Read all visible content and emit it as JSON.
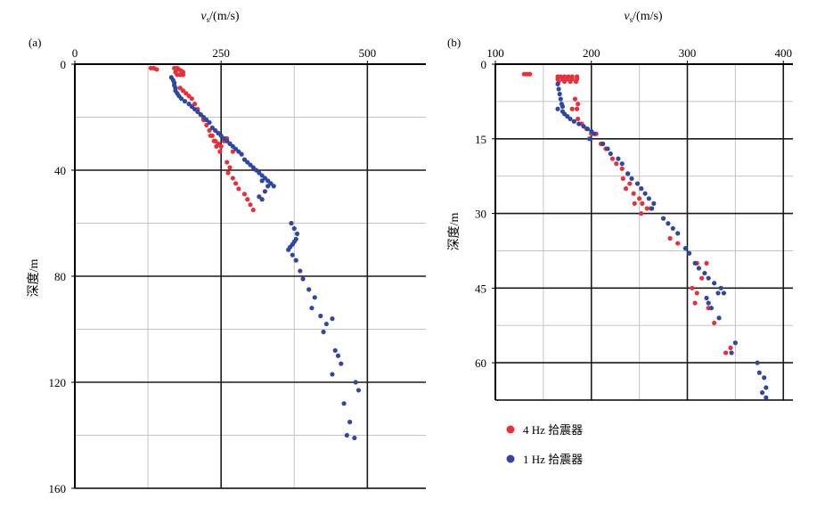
{
  "legend": {
    "red_label": "4 Hz 拾震器",
    "blue_label": "1 Hz 拾震器"
  },
  "colors": {
    "red": "#e8303a",
    "blue": "#2f47a3",
    "major_grid": "#1a1a1a",
    "minor_grid": "#c4c4c4"
  },
  "chart_data": [
    {
      "type": "scatter",
      "panel_label": "(a)",
      "xlabel_var": "v",
      "xlabel_sub": "s",
      "xlabel_unit": "/(m/s)",
      "ylabel": "深度/m",
      "xlim": [
        0,
        600
      ],
      "ylim": [
        0,
        160
      ],
      "y_inverted": true,
      "x_axis_position": "top",
      "xticks": [
        0,
        250,
        500
      ],
      "yticks": [
        0,
        40,
        80,
        120,
        160
      ],
      "major_x": [
        250,
        500
      ],
      "minor_x": [
        125,
        375
      ],
      "major_y": [
        40,
        80,
        120
      ],
      "minor_y": [
        20,
        60,
        100,
        140
      ],
      "series": [
        {
          "name": "4 Hz 拾震器",
          "color": "red",
          "points": [
            [
              130,
              1.5
            ],
            [
              135,
              1.5
            ],
            [
              140,
              2
            ],
            [
              170,
              1.5
            ],
            [
              175,
              1.5
            ],
            [
              178,
              2
            ],
            [
              182,
              2.5
            ],
            [
              185,
              3
            ],
            [
              172,
              3
            ],
            [
              175,
              4
            ],
            [
              180,
              4
            ],
            [
              185,
              4
            ],
            [
              180,
              9
            ],
            [
              185,
              10
            ],
            [
              190,
              11
            ],
            [
              195,
              12
            ],
            [
              200,
              13
            ],
            [
              205,
              15
            ],
            [
              210,
              17
            ],
            [
              215,
              19
            ],
            [
              220,
              21
            ],
            [
              225,
              23
            ],
            [
              230,
              25
            ],
            [
              235,
              27
            ],
            [
              240,
              29
            ],
            [
              245,
              30
            ],
            [
              250,
              31
            ],
            [
              255,
              29
            ],
            [
              260,
              28
            ],
            [
              265,
              30
            ],
            [
              270,
              33
            ],
            [
              232,
              27
            ],
            [
              238,
              29
            ],
            [
              242,
              31
            ],
            [
              248,
              33
            ],
            [
              260,
              37
            ],
            [
              265,
              39
            ],
            [
              262,
              41
            ],
            [
              270,
              43
            ],
            [
              275,
              45
            ],
            [
              280,
              47
            ],
            [
              290,
              49
            ],
            [
              295,
              51
            ],
            [
              300,
              53
            ],
            [
              305,
              55
            ]
          ]
        },
        {
          "name": "1 Hz 拾震器",
          "color": "blue",
          "points": [
            [
              165,
              5
            ],
            [
              168,
              6
            ],
            [
              170,
              7
            ],
            [
              170,
              8
            ],
            [
              172,
              9
            ],
            [
              172,
              10
            ],
            [
              175,
              11
            ],
            [
              178,
              12
            ],
            [
              182,
              13
            ],
            [
              188,
              14
            ],
            [
              195,
              15
            ],
            [
              200,
              16
            ],
            [
              205,
              17
            ],
            [
              210,
              18
            ],
            [
              215,
              19
            ],
            [
              220,
              20
            ],
            [
              225,
              21
            ],
            [
              230,
              22
            ],
            [
              235,
              24
            ],
            [
              240,
              25
            ],
            [
              245,
              26
            ],
            [
              250,
              27
            ],
            [
              255,
              28
            ],
            [
              260,
              29
            ],
            [
              265,
              30
            ],
            [
              270,
              31
            ],
            [
              275,
              32
            ],
            [
              280,
              33
            ],
            [
              285,
              34
            ],
            [
              290,
              36
            ],
            [
              295,
              37
            ],
            [
              300,
              38
            ],
            [
              305,
              39
            ],
            [
              310,
              40
            ],
            [
              315,
              41
            ],
            [
              320,
              42
            ],
            [
              325,
              43
            ],
            [
              330,
              44
            ],
            [
              335,
              45
            ],
            [
              340,
              46
            ],
            [
              320,
              44
            ],
            [
              330,
              46
            ],
            [
              325,
              48
            ],
            [
              315,
              50
            ],
            [
              320,
              51
            ],
            [
              370,
              60
            ],
            [
              375,
              62
            ],
            [
              380,
              64
            ],
            [
              378,
              66
            ],
            [
              375,
              67
            ],
            [
              372,
              68
            ],
            [
              368,
              69
            ],
            [
              365,
              70
            ],
            [
              372,
              72
            ],
            [
              378,
              74
            ],
            [
              385,
              78
            ],
            [
              390,
              81
            ],
            [
              400,
              85
            ],
            [
              410,
              88
            ],
            [
              405,
              92
            ],
            [
              420,
              95
            ],
            [
              430,
              98
            ],
            [
              440,
              96
            ],
            [
              425,
              101
            ],
            [
              445,
              108
            ],
            [
              450,
              110
            ],
            [
              455,
              113
            ],
            [
              440,
              117
            ],
            [
              480,
              120
            ],
            [
              485,
              123
            ],
            [
              460,
              128
            ],
            [
              470,
              135
            ],
            [
              465,
              140
            ],
            [
              478,
              141
            ]
          ]
        }
      ]
    },
    {
      "type": "scatter",
      "panel_label": "(b)",
      "xlabel_var": "v",
      "xlabel_sub": "s",
      "xlabel_unit": "/(m/s)",
      "ylabel": "深度/m",
      "xlim": [
        100,
        410
      ],
      "ylim": [
        0,
        67.5
      ],
      "y_inverted": true,
      "x_axis_position": "top",
      "xticks": [
        100,
        200,
        300,
        400
      ],
      "yticks": [
        0,
        15,
        30,
        45,
        60
      ],
      "major_x": [
        200,
        300,
        400
      ],
      "minor_x": [
        150,
        250,
        350
      ],
      "major_y": [
        15,
        30,
        45,
        60
      ],
      "minor_y": [
        7.5,
        22.5,
        37.5,
        52.5
      ],
      "series": [
        {
          "name": "4 Hz 拾震器",
          "color": "red",
          "points": [
            [
              130,
              2
            ],
            [
              133,
              2
            ],
            [
              136,
              2
            ],
            [
              165,
              2.5
            ],
            [
              168,
              2.5
            ],
            [
              172,
              2.5
            ],
            [
              176,
              2.5
            ],
            [
              180,
              2.5
            ],
            [
              185,
              2.5
            ],
            [
              165,
              3
            ],
            [
              170,
              3
            ],
            [
              175,
              3
            ],
            [
              180,
              3
            ],
            [
              185,
              3
            ],
            [
              166,
              3.5
            ],
            [
              172,
              3.5
            ],
            [
              178,
              3.5
            ],
            [
              184,
              3.5
            ],
            [
              183,
              7
            ],
            [
              186,
              8
            ],
            [
              180,
              9
            ],
            [
              185,
              9
            ],
            [
              186,
              11
            ],
            [
              190,
              12
            ],
            [
              195,
              13
            ],
            [
              200,
              14
            ],
            [
              205,
              14
            ],
            [
              210,
              16
            ],
            [
              215,
              17
            ],
            [
              222,
              19
            ],
            [
              226,
              20
            ],
            [
              232,
              21
            ],
            [
              238,
              22
            ],
            [
              233,
              23
            ],
            [
              240,
              24
            ],
            [
              236,
              25
            ],
            [
              244,
              26
            ],
            [
              250,
              27
            ],
            [
              245,
              28
            ],
            [
              253,
              28
            ],
            [
              258,
              29
            ],
            [
              252,
              30
            ],
            [
              262,
              29
            ],
            [
              282,
              35
            ],
            [
              290,
              36
            ],
            [
              310,
              40
            ],
            [
              320,
              40
            ],
            [
              315,
              43
            ],
            [
              305,
              45
            ],
            [
              310,
              46
            ],
            [
              308,
              48
            ],
            [
              322,
              49
            ],
            [
              328,
              52
            ],
            [
              345,
              57
            ],
            [
              340,
              58
            ]
          ]
        },
        {
          "name": "1 Hz 拾震器",
          "color": "blue",
          "points": [
            [
              165,
              4
            ],
            [
              166,
              5
            ],
            [
              167,
              6
            ],
            [
              168,
              7
            ],
            [
              169,
              8
            ],
            [
              170,
              8.5
            ],
            [
              165,
              9
            ],
            [
              170,
              9.5
            ],
            [
              172,
              10
            ],
            [
              175,
              10.5
            ],
            [
              178,
              11
            ],
            [
              182,
              11.5
            ],
            [
              187,
              12
            ],
            [
              192,
              12.5
            ],
            [
              196,
              13
            ],
            [
              200,
              13.5
            ],
            [
              203,
              14
            ],
            [
              198,
              15
            ],
            [
              212,
              16
            ],
            [
              217,
              17
            ],
            [
              220,
              18
            ],
            [
              228,
              19
            ],
            [
              232,
              20
            ],
            [
              238,
              22
            ],
            [
              242,
              23
            ],
            [
              248,
              24
            ],
            [
              252,
              25
            ],
            [
              256,
              26
            ],
            [
              260,
              27
            ],
            [
              265,
              28
            ],
            [
              263,
              29
            ],
            [
              275,
              31
            ],
            [
              280,
              32
            ],
            [
              285,
              33
            ],
            [
              290,
              34
            ],
            [
              298,
              37
            ],
            [
              302,
              38
            ],
            [
              308,
              40
            ],
            [
              312,
              41
            ],
            [
              318,
              42
            ],
            [
              322,
              43
            ],
            [
              328,
              44
            ],
            [
              335,
              45
            ],
            [
              338,
              46
            ],
            [
              332,
              46
            ],
            [
              320,
              47
            ],
            [
              322,
              48
            ],
            [
              325,
              49
            ],
            [
              333,
              51
            ],
            [
              350,
              56
            ],
            [
              346,
              58
            ],
            [
              373,
              60
            ],
            [
              375,
              62
            ],
            [
              380,
              63
            ],
            [
              382,
              65
            ],
            [
              378,
              66
            ],
            [
              382,
              67
            ]
          ]
        }
      ]
    }
  ]
}
